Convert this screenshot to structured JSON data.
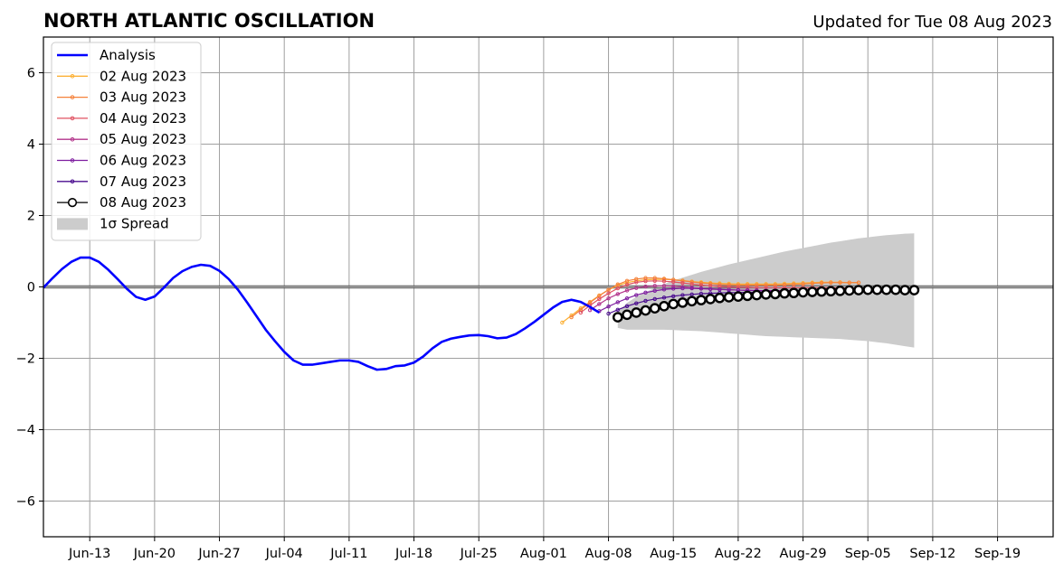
{
  "chart_data": {
    "type": "line",
    "title": "NORTH ATLANTIC OSCILLATION",
    "subtitle": "Updated for Tue 08 Aug 2023",
    "x_start": "2023-06-08",
    "x_end": "2023-09-25",
    "ylim": [
      -7,
      7
    ],
    "yticks": [
      -6,
      -4,
      -2,
      0,
      2,
      4,
      6
    ],
    "ytick_labels": [
      "−6",
      "−4",
      "−2",
      "0",
      "2",
      "4",
      "6"
    ],
    "xticks": [
      "2023-06-13",
      "2023-06-20",
      "2023-06-27",
      "2023-07-04",
      "2023-07-11",
      "2023-07-18",
      "2023-07-25",
      "2023-08-01",
      "2023-08-08",
      "2023-08-15",
      "2023-08-22",
      "2023-08-29",
      "2023-09-05",
      "2023-09-12",
      "2023-09-19"
    ],
    "xtick_labels": [
      "Jun-13",
      "Jun-20",
      "Jun-27",
      "Jul-04",
      "Jul-11",
      "Jul-18",
      "Jul-25",
      "Aug-01",
      "Aug-08",
      "Aug-15",
      "Aug-22",
      "Aug-29",
      "Sep-05",
      "Sep-12",
      "Sep-19"
    ],
    "grid": true,
    "legend_position": "upper-left",
    "analysis": {
      "name": "Analysis",
      "color": "#0000ff",
      "x_start": "2023-06-08",
      "values": [
        -0.02,
        0.25,
        0.5,
        0.7,
        0.82,
        0.82,
        0.7,
        0.48,
        0.22,
        -0.05,
        -0.28,
        -0.36,
        -0.27,
        -0.02,
        0.25,
        0.44,
        0.56,
        0.62,
        0.59,
        0.45,
        0.22,
        -0.08,
        -0.44,
        -0.82,
        -1.2,
        -1.52,
        -1.82,
        -2.06,
        -2.18,
        -2.18,
        -2.14,
        -2.1,
        -2.06,
        -2.06,
        -2.1,
        -2.22,
        -2.32,
        -2.3,
        -2.22,
        -2.2,
        -2.12,
        -1.95,
        -1.72,
        -1.54,
        -1.45,
        -1.4,
        -1.36,
        -1.35,
        -1.38,
        -1.44,
        -1.42,
        -1.32,
        -1.16,
        -0.98,
        -0.78,
        -0.58,
        -0.42,
        -0.36,
        -0.42,
        -0.56,
        -0.72
      ]
    },
    "series": [
      {
        "name": "02 Aug 2023",
        "color": "#fcb136",
        "x_start": "2023-08-03",
        "values": [
          -1.0,
          -0.8,
          -0.6,
          -0.42,
          -0.24,
          -0.08,
          0.04,
          0.12,
          0.17,
          0.2,
          0.21,
          0.21,
          0.2,
          0.18,
          0.15,
          0.13,
          0.11,
          0.1,
          0.09,
          0.08,
          0.08,
          0.08,
          0.08,
          0.08,
          0.09,
          0.1,
          0.11,
          0.12,
          0.13,
          0.13,
          0.13,
          0.12,
          0.12
        ]
      },
      {
        "name": "03 Aug 2023",
        "color": "#f5813a",
        "x_start": "2023-08-04",
        "values": [
          -0.85,
          -0.64,
          -0.44,
          -0.25,
          -0.08,
          0.07,
          0.17,
          0.22,
          0.25,
          0.25,
          0.23,
          0.2,
          0.17,
          0.14,
          0.11,
          0.09,
          0.07,
          0.06,
          0.05,
          0.05,
          0.05,
          0.05,
          0.05,
          0.06,
          0.07,
          0.08,
          0.1,
          0.11,
          0.12,
          0.12,
          0.12,
          0.12
        ]
      },
      {
        "name": "04 Aug 2023",
        "color": "#e05262",
        "x_start": "2023-08-05",
        "values": [
          -0.72,
          -0.52,
          -0.34,
          -0.18,
          -0.04,
          0.06,
          0.13,
          0.16,
          0.17,
          0.16,
          0.14,
          0.11,
          0.08,
          0.05,
          0.03,
          0.01,
          0.0,
          -0.01,
          -0.01,
          -0.02,
          -0.02,
          -0.02,
          -0.02,
          -0.02,
          -0.02,
          -0.02,
          -0.02,
          -0.02,
          -0.02,
          -0.03,
          -0.03,
          -0.03
        ]
      },
      {
        "name": "05 Aug 2023",
        "color": "#b3358b",
        "x_start": "2023-08-06",
        "values": [
          -0.65,
          -0.48,
          -0.32,
          -0.2,
          -0.1,
          -0.03,
          0.01,
          0.03,
          0.03,
          0.02,
          0.0,
          -0.02,
          -0.04,
          -0.06,
          -0.07,
          -0.08,
          -0.09,
          -0.09,
          -0.1,
          -0.1,
          -0.1,
          -0.1,
          -0.1,
          -0.11,
          -0.11,
          -0.11,
          -0.12,
          -0.12,
          -0.12,
          -0.13,
          -0.13,
          -0.13
        ]
      },
      {
        "name": "06 Aug 2023",
        "color": "#7e1ea0",
        "x_start": "2023-08-07",
        "values": [
          -0.68,
          -0.55,
          -0.43,
          -0.32,
          -0.23,
          -0.16,
          -0.11,
          -0.07,
          -0.05,
          -0.04,
          -0.04,
          -0.05,
          -0.06,
          -0.07,
          -0.08,
          -0.09,
          -0.1,
          -0.1,
          -0.11,
          -0.11,
          -0.11,
          -0.11,
          -0.12,
          -0.12,
          -0.12,
          -0.13,
          -0.13,
          -0.13,
          -0.14,
          -0.14,
          -0.15,
          -0.15
        ]
      },
      {
        "name": "07 Aug 2023",
        "color": "#4a0c8f",
        "x_start": "2023-08-08",
        "values": [
          -0.75,
          -0.64,
          -0.54,
          -0.46,
          -0.39,
          -0.34,
          -0.3,
          -0.26,
          -0.23,
          -0.21,
          -0.19,
          -0.18,
          -0.17,
          -0.16,
          -0.16,
          -0.15,
          -0.15,
          -0.14,
          -0.14,
          -0.14,
          -0.13,
          -0.13,
          -0.13,
          -0.13,
          -0.13,
          -0.13,
          -0.13,
          -0.13,
          -0.13,
          -0.14,
          -0.14,
          -0.14
        ]
      },
      {
        "name": "08 Aug 2023",
        "color": "#000000",
        "open_markers": true,
        "x_start": "2023-08-09",
        "values": [
          -0.85,
          -0.78,
          -0.72,
          -0.66,
          -0.6,
          -0.54,
          -0.48,
          -0.44,
          -0.4,
          -0.37,
          -0.34,
          -0.31,
          -0.29,
          -0.27,
          -0.25,
          -0.23,
          -0.21,
          -0.2,
          -0.18,
          -0.17,
          -0.15,
          -0.14,
          -0.13,
          -0.12,
          -0.11,
          -0.1,
          -0.09,
          -0.08,
          -0.08,
          -0.08,
          -0.08,
          -0.09,
          -0.09
        ]
      }
    ],
    "spread": {
      "name": "1σ Spread",
      "color": "#cccccc",
      "x_start": "2023-08-09",
      "upper": [
        -0.7,
        -0.45,
        -0.28,
        -0.15,
        -0.03,
        0.08,
        0.18,
        0.26,
        0.34,
        0.42,
        0.49,
        0.56,
        0.63,
        0.69,
        0.75,
        0.81,
        0.87,
        0.93,
        0.99,
        1.04,
        1.09,
        1.14,
        1.19,
        1.24,
        1.28,
        1.32,
        1.36,
        1.39,
        1.42,
        1.45,
        1.47,
        1.49,
        1.5
      ],
      "lower": [
        -1.15,
        -1.2,
        -1.2,
        -1.2,
        -1.2,
        -1.2,
        -1.21,
        -1.22,
        -1.23,
        -1.24,
        -1.26,
        -1.28,
        -1.3,
        -1.32,
        -1.34,
        -1.36,
        -1.38,
        -1.39,
        -1.4,
        -1.41,
        -1.42,
        -1.43,
        -1.44,
        -1.45,
        -1.46,
        -1.48,
        -1.5,
        -1.52,
        -1.55,
        -1.58,
        -1.62,
        -1.66,
        -1.7
      ]
    }
  }
}
